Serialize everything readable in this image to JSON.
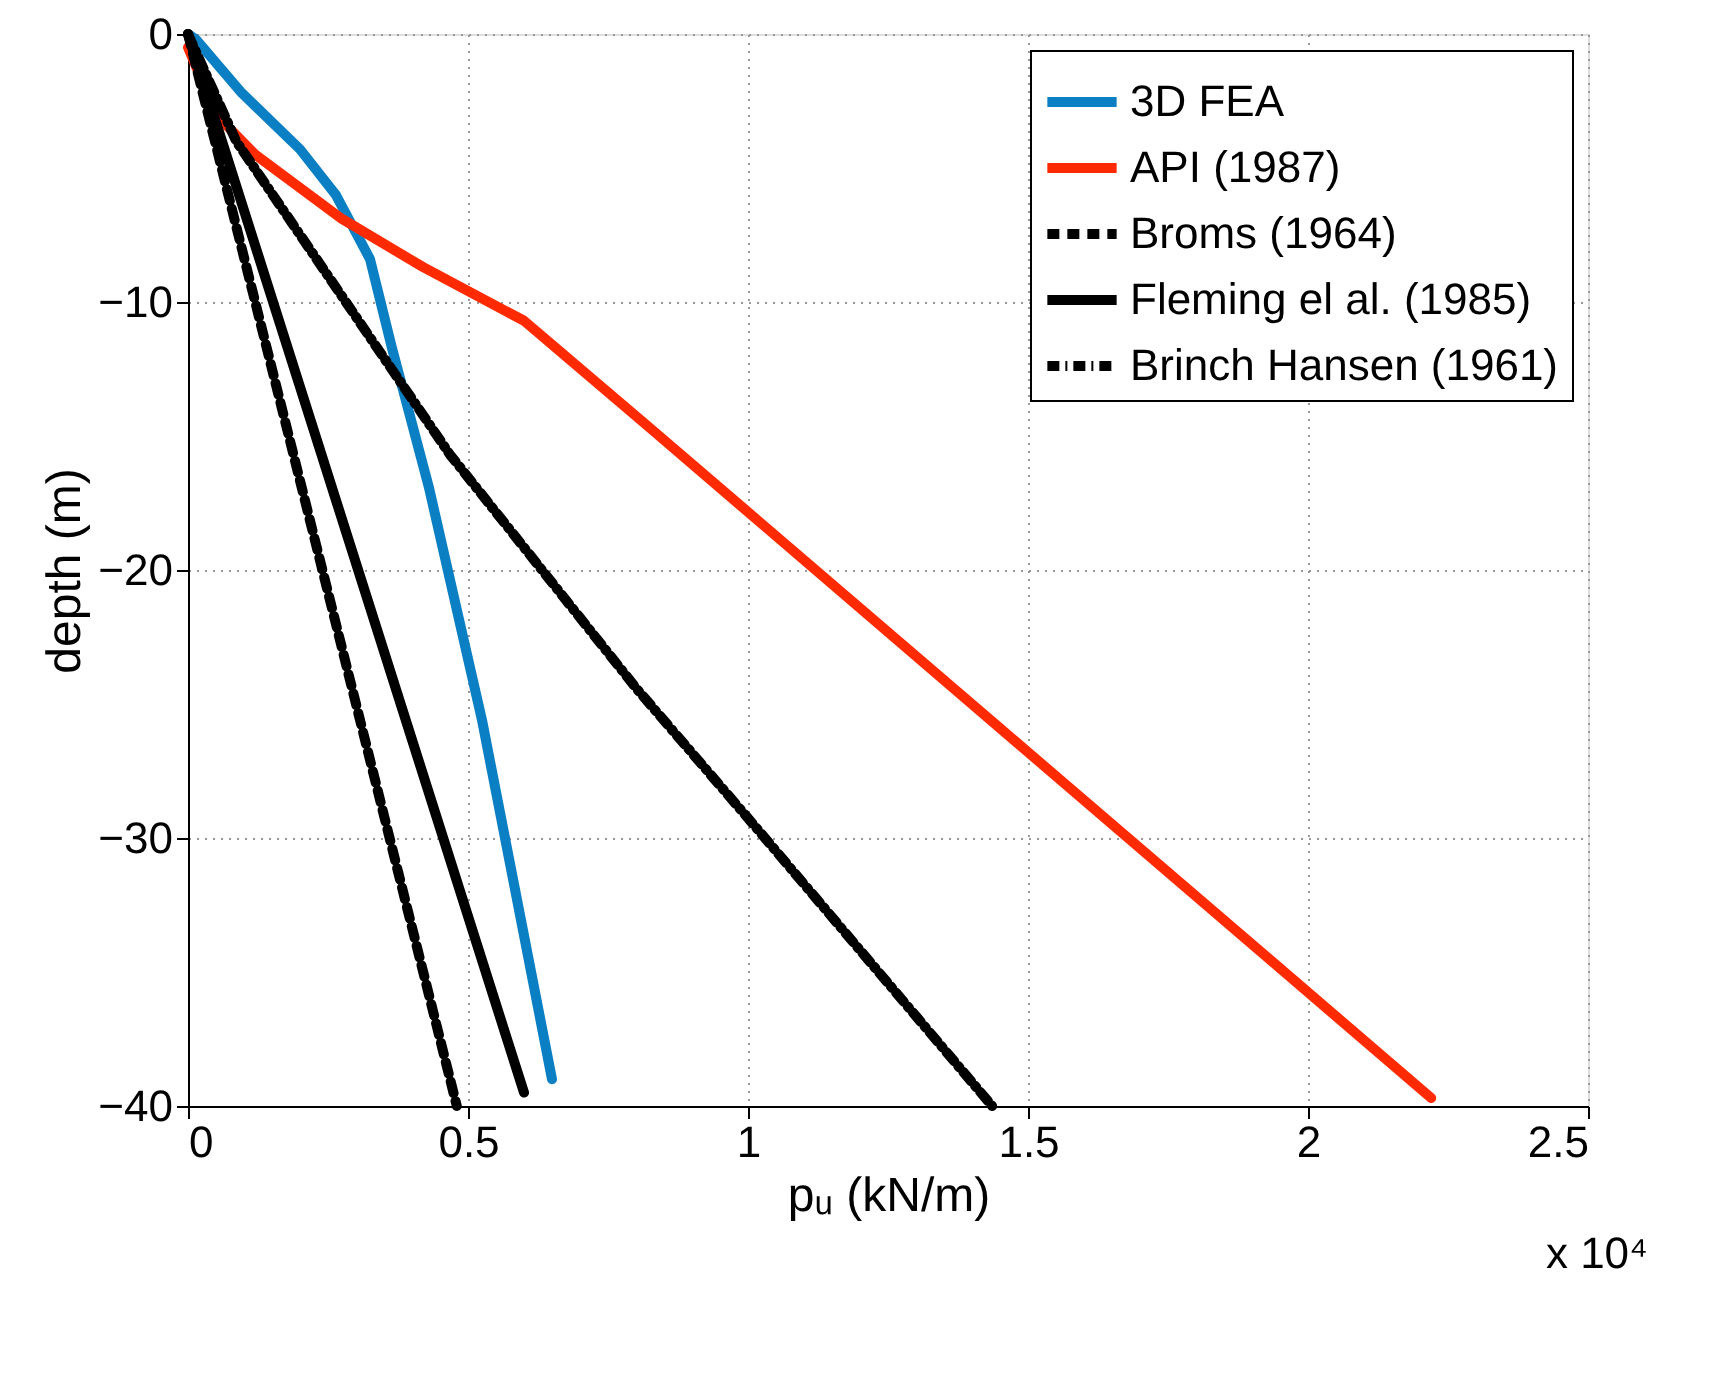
{
  "chart_data": {
    "type": "line",
    "xlabel": "pᵤ (kN/m)",
    "ylabel": "depth (m)",
    "xlim": [
      0,
      2.5
    ],
    "xticks": [
      0,
      0.5,
      1,
      1.5,
      2,
      2.5
    ],
    "ylim": [
      -40,
      0
    ],
    "yticks": [
      -40,
      -30,
      -20,
      -10,
      0
    ],
    "grid": true,
    "legend": "top right",
    "annotations": [
      "x 10⁴"
    ],
    "series": [
      {
        "name": "3D FEA",
        "color": "#0a7fc4",
        "line_style": "solid",
        "x": [
          0,
          0.014,
          0.096,
          0.2,
          0.264,
          0.325,
          0.364,
          0.43,
          0.525,
          0.65
        ],
        "values": [
          0,
          -0.2,
          -2.2,
          -4.3,
          -6.0,
          -8.4,
          -11.7,
          -16.9,
          -25.6,
          -39.0
        ]
      },
      {
        "name": "API (1987)",
        "color": "#ff2a00",
        "line_style": "solid",
        "x": [
          0,
          0.05,
          0.12,
          0.275,
          0.42,
          0.6,
          0.825,
          2.22
        ],
        "values": [
          -0.5,
          -3.0,
          -4.5,
          -6.9,
          -8.7,
          -10.7,
          -14.7,
          -39.7
        ]
      },
      {
        "name": "Broms (1964)",
        "color": "#000000",
        "line_style": "dashed",
        "x": [
          0,
          0.48
        ],
        "values": [
          0,
          -40
        ]
      },
      {
        "name": "Fleming el al. (1985)",
        "color": "#000000",
        "line_style": "solid",
        "x": [
          0,
          0.6
        ],
        "values": [
          0,
          -39.5
        ]
      },
      {
        "name": "Brinch Hansen (1961)",
        "color": "#000000",
        "line_style": "dashdot",
        "x": [
          0,
          0.086,
          0.468,
          0.8,
          1.014,
          1.436
        ],
        "values": [
          0,
          -4.0,
          -15.7,
          -24.4,
          -29.6,
          -40
        ]
      }
    ]
  }
}
